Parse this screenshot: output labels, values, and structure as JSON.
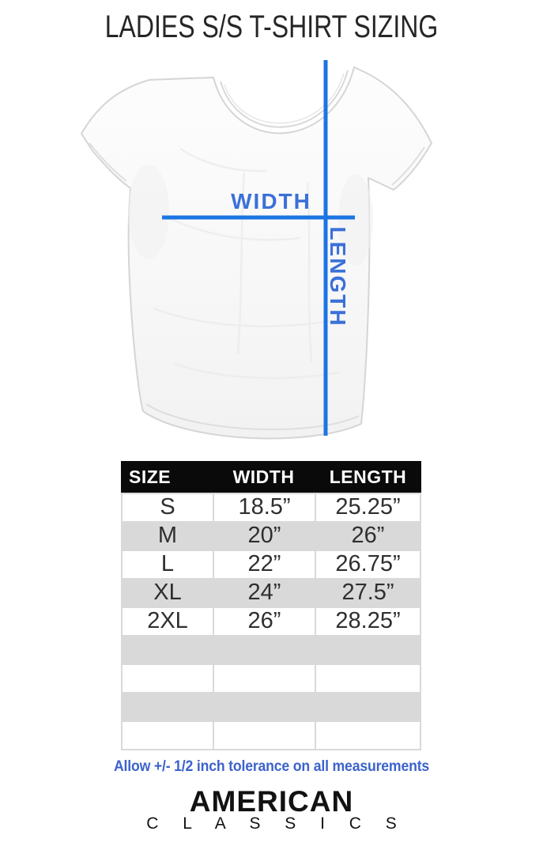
{
  "title": "LADIES S/S T-SHIRT SIZING",
  "diagram": {
    "width_label": "WIDTH",
    "length_label": "LENGTH"
  },
  "chart_data": {
    "type": "table",
    "title": "LADIES S/S T-SHIRT SIZING",
    "columns": [
      "SIZE",
      "WIDTH",
      "LENGTH"
    ],
    "rows": [
      [
        "S",
        "18.5”",
        "25.25”"
      ],
      [
        "M",
        "20”",
        "26”"
      ],
      [
        "L",
        "22”",
        "26.75”"
      ],
      [
        "XL",
        "24”",
        "27.5”"
      ],
      [
        "2XL",
        "26”",
        "28.25”"
      ]
    ],
    "empty_rows": 4,
    "units": "inches",
    "note": "Allow +/- 1/2 inch tolerance on all measurements"
  },
  "note": "Allow +/- 1/2 inch tolerance on all measurements",
  "brand": {
    "line1": "AMERICAN",
    "line2": "C L A S S I C S"
  },
  "colors": {
    "measure_line_blue": "#1b75e3",
    "measure_label_blue": "#3b70d8",
    "note_blue": "#3c63cc",
    "table_header_bg": "#0a0a0a",
    "table_row_gray": "#d9d9d9",
    "background": "#ffffff"
  }
}
